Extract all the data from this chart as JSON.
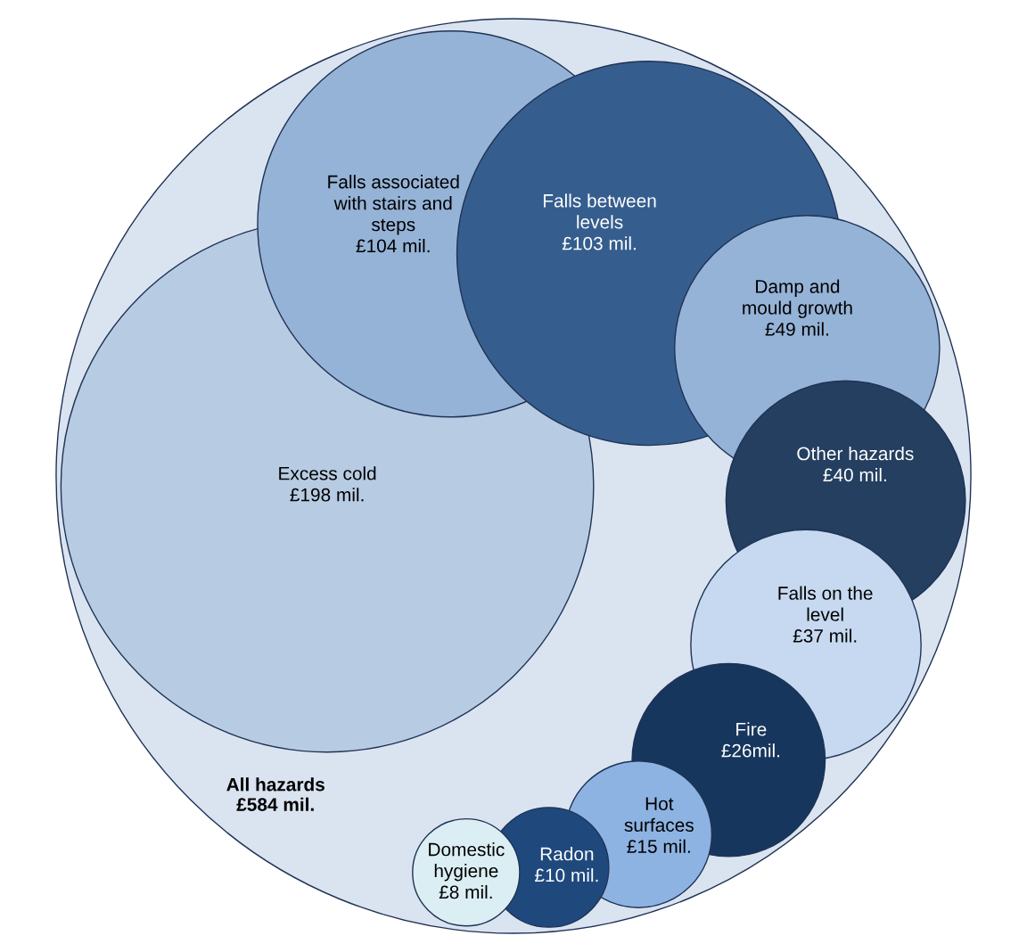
{
  "chart_data": {
    "type": "other",
    "categories": [
      "All hazards",
      "Excess cold",
      "Falls associated\nwith stairs and\nsteps",
      "Falls between\nlevels",
      "Damp and\nmould growth",
      "Other hazards",
      "Falls on the\nlevel",
      "Fire",
      "Hot\nsurfaces",
      "Radon",
      "Domestic\nhygiene"
    ],
    "values": [
      584,
      198,
      104,
      103,
      49,
      40,
      37,
      26,
      15,
      10,
      8
    ],
    "value_labels": [
      "£584 mil.",
      "£198 mil.",
      "£104 mil.",
      "£103 mil.",
      "£49 mil.",
      "£40 mil.",
      "£37 mil.",
      "£26mil.",
      "£15 mil.",
      "£10 mil.",
      "£8 mil."
    ],
    "colors": [
      "#dae3f0",
      "#b7cbe3",
      "#95b3d7",
      "#355e8e",
      "#95b3d7",
      "#243f60",
      "#c6d9f0",
      "#17365d",
      "#8db3e2",
      "#1f497d",
      "#dbeef3"
    ]
  }
}
